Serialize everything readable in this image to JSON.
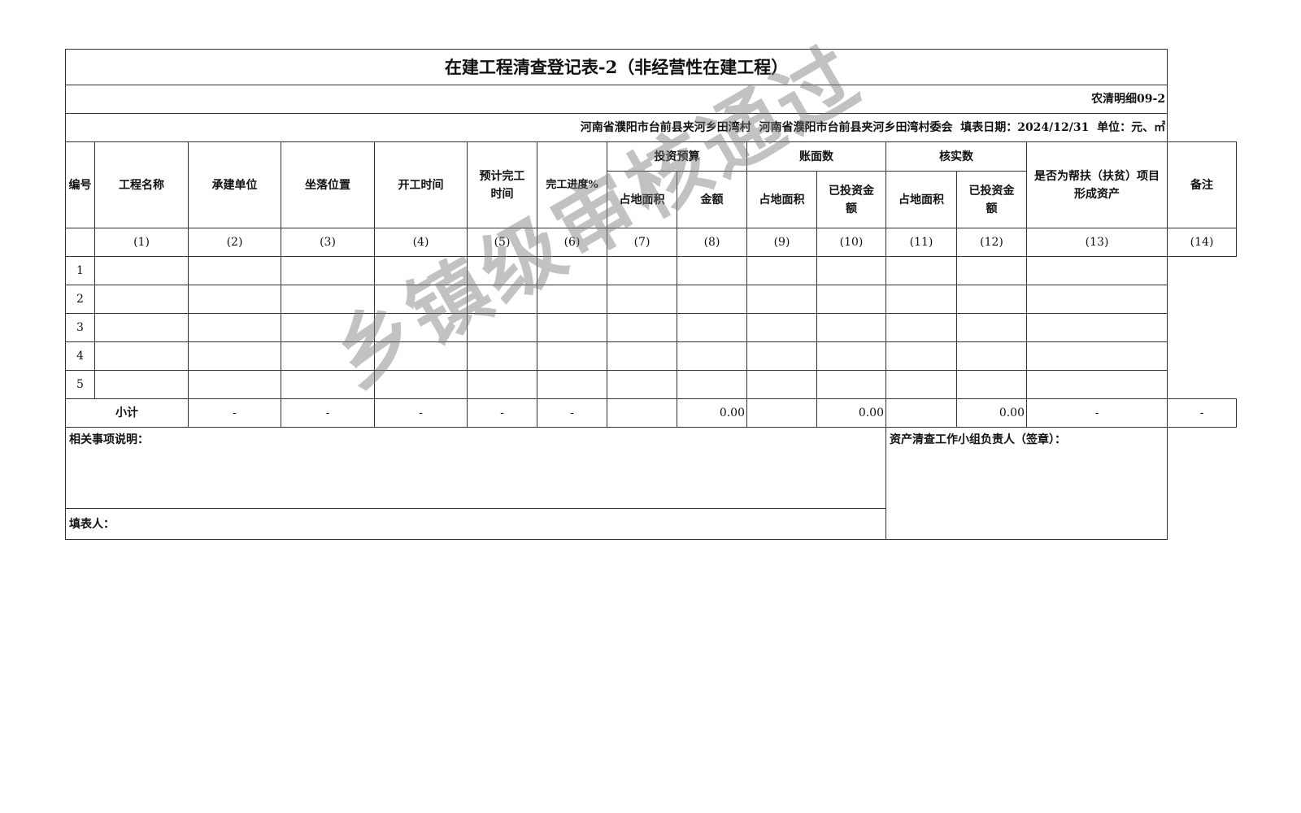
{
  "title": "在建工程清查登记表-2（非经营性在建工程）",
  "form_code": "农清明细09-2",
  "info_line": "河南省濮阳市台前县夹河乡田湾村  河南省濮阳市台前县夹河乡田湾村委会  填表日期：2024/12/31  单位：元、㎡",
  "headers": {
    "no": "编号",
    "name": "工程名称",
    "builder": "承建单位",
    "location": "坐落位置",
    "start": "开工时间",
    "planned_end": "预计完工时间",
    "progress": "完工进度%",
    "budget": "投资预算",
    "book": "账面数",
    "verified": "核实数",
    "area": "占地面积",
    "amount": "金额",
    "invested": "已投资金额",
    "poverty": "是否为帮扶（扶贫）项目形成资产",
    "remark": "备注"
  },
  "col_index": [
    "(1)",
    "(2)",
    "(3)",
    "(4)",
    "(5)",
    "(6)",
    "(7)",
    "(8)",
    "(9)",
    "(10)",
    "(11)",
    "(12)",
    "(13)",
    "(14)"
  ],
  "rows": [
    "1",
    "2",
    "3",
    "4",
    "5"
  ],
  "subtotal": {
    "label": "小计",
    "builder": "-",
    "location": "-",
    "start": "-",
    "planned_end": "-",
    "progress": "-",
    "budget_amount": "0.00",
    "book_invested": "0.00",
    "verified_invested": "0.00",
    "poverty": "-",
    "remark": "-"
  },
  "notes_label": "相关事项说明：",
  "signer_label": "资产清查工作小组负责人（签章）：",
  "filler_label": "填表人：",
  "watermark": "乡镇级审核通过"
}
